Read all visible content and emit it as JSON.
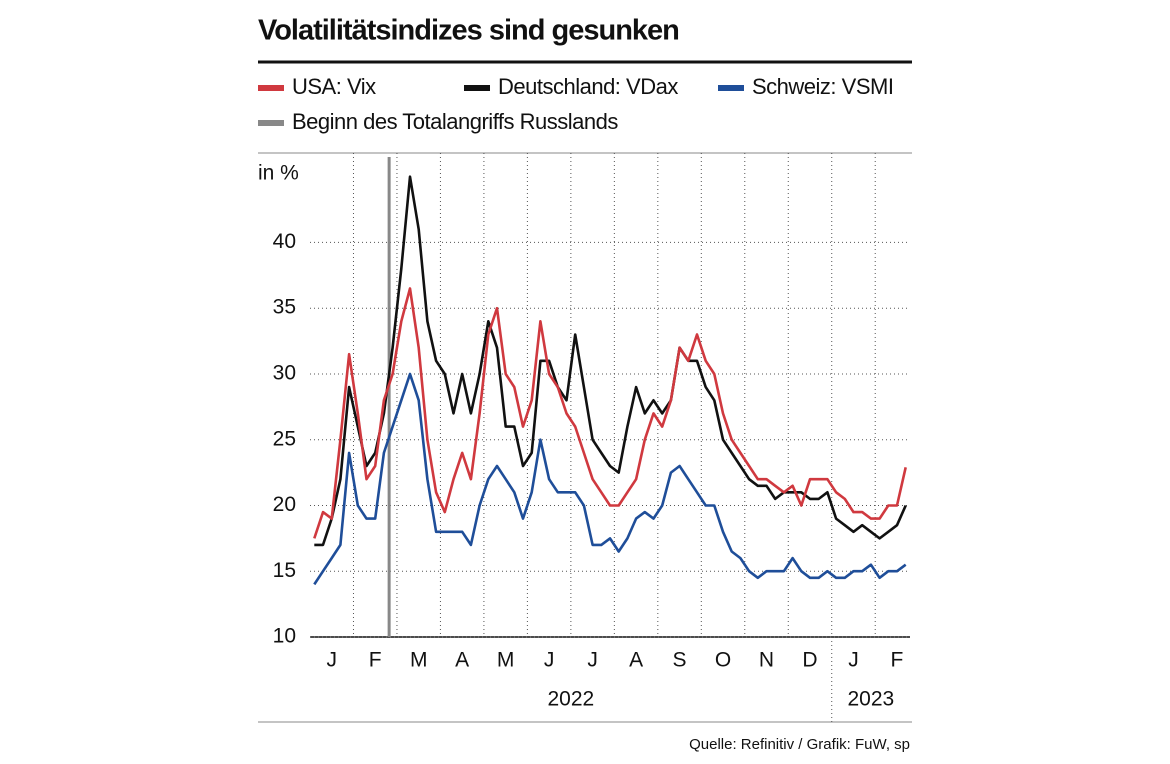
{
  "chart_data": {
    "type": "line",
    "title": "Volatilitätsindizes sind gesunken",
    "y_unit_label": "in %",
    "source": "Quelle: Refinitiv / Grafik: FuW, sp",
    "x": [
      0.1,
      0.3,
      0.5,
      0.7,
      0.9,
      1.1,
      1.3,
      1.5,
      1.7,
      1.9,
      2.1,
      2.3,
      2.5,
      2.7,
      2.9,
      3.1,
      3.3,
      3.5,
      3.7,
      3.9,
      4.1,
      4.3,
      4.5,
      4.7,
      4.9,
      5.1,
      5.3,
      5.5,
      5.7,
      5.9,
      6.1,
      6.3,
      6.5,
      6.7,
      6.9,
      7.1,
      7.3,
      7.5,
      7.7,
      7.9,
      8.1,
      8.3,
      8.5,
      8.7,
      8.9,
      9.1,
      9.3,
      9.5,
      9.7,
      9.9,
      10.1,
      10.3,
      10.5,
      10.7,
      10.9,
      11.1,
      11.3,
      11.5,
      11.7,
      11.9,
      12.1,
      12.3,
      12.5,
      12.7,
      12.9,
      13.1,
      13.3,
      13.5,
      13.7
    ],
    "series": [
      {
        "name": "USA: Vix",
        "color": "#d0393f",
        "values": [
          17.5,
          19.5,
          19,
          25,
          31.5,
          27,
          22,
          23,
          28,
          30,
          34,
          36.5,
          32,
          25,
          21,
          19.5,
          22,
          24,
          22,
          27,
          33,
          35,
          30,
          29,
          26,
          28,
          34,
          30,
          29,
          27,
          26,
          24,
          22,
          21,
          20,
          20,
          21,
          22,
          25,
          27,
          26,
          28,
          32,
          31,
          33,
          31,
          30,
          27,
          25,
          24,
          23,
          22,
          22,
          21.5,
          21,
          21.5,
          20,
          22,
          22,
          22,
          21,
          20.5,
          19.5,
          19.5,
          19,
          19,
          20,
          20,
          22.9
        ]
      },
      {
        "name": "Deutschland: VDax",
        "color": "#111111",
        "values": [
          17,
          17,
          19,
          22,
          29,
          26,
          23,
          24,
          27,
          32,
          38,
          45,
          41,
          34,
          31,
          30,
          27,
          30,
          27,
          30,
          34,
          32,
          26,
          26,
          23,
          24,
          31,
          31,
          29,
          28,
          33,
          29,
          25,
          24,
          23,
          22.5,
          26,
          29,
          27,
          28,
          27,
          28,
          32,
          31,
          31,
          29,
          28,
          25,
          24,
          23,
          22,
          21.5,
          21.5,
          20.5,
          21,
          21,
          21,
          20.5,
          20.5,
          21,
          19,
          18.5,
          18,
          18.5,
          18,
          17.5,
          18,
          18.5,
          20
        ]
      },
      {
        "name": "Schweiz: VSMI",
        "color": "#1f4e99",
        "values": [
          14,
          15,
          16,
          17,
          24,
          20,
          19,
          19,
          24,
          26,
          28,
          30,
          28,
          22,
          18,
          18,
          18,
          18,
          17,
          20,
          22,
          23,
          22,
          21,
          19,
          21,
          25,
          22,
          21,
          21,
          21,
          20,
          17,
          17,
          17.5,
          16.5,
          17.5,
          19,
          19.5,
          19,
          20,
          22.5,
          23,
          22,
          21,
          20,
          20,
          18,
          16.5,
          16,
          15,
          14.5,
          15,
          15,
          15,
          16,
          15,
          14.5,
          14.5,
          15,
          14.5,
          14.5,
          15,
          15,
          15.5,
          14.5,
          15,
          15,
          15.5
        ]
      }
    ],
    "annotation": {
      "label": "Beginn des Totalangriffs Russlands",
      "x": 1.82,
      "color": "#888888"
    },
    "xlim": [
      0,
      13.8
    ],
    "xticks": [
      {
        "value": 0.5,
        "label": "J"
      },
      {
        "value": 1.5,
        "label": "F"
      },
      {
        "value": 2.5,
        "label": "M"
      },
      {
        "value": 3.5,
        "label": "A"
      },
      {
        "value": 4.5,
        "label": "M"
      },
      {
        "value": 5.5,
        "label": "J"
      },
      {
        "value": 6.5,
        "label": "J"
      },
      {
        "value": 7.5,
        "label": "A"
      },
      {
        "value": 8.5,
        "label": "S"
      },
      {
        "value": 9.5,
        "label": "O"
      },
      {
        "value": 10.5,
        "label": "N"
      },
      {
        "value": 11.5,
        "label": "D"
      },
      {
        "value": 12.5,
        "label": "J"
      },
      {
        "value": 13.5,
        "label": "F"
      }
    ],
    "xgrid": [
      1,
      2,
      3,
      4,
      5,
      6,
      7,
      8,
      9,
      10,
      11,
      12,
      13
    ],
    "years": [
      {
        "label": "2022",
        "start": 0,
        "end": 12
      },
      {
        "label": "2023",
        "start": 12,
        "end": 13.8
      }
    ],
    "ylim": [
      10,
      46.8
    ],
    "yticks": [
      10,
      15,
      20,
      25,
      30,
      35,
      40
    ],
    "grid": true
  }
}
